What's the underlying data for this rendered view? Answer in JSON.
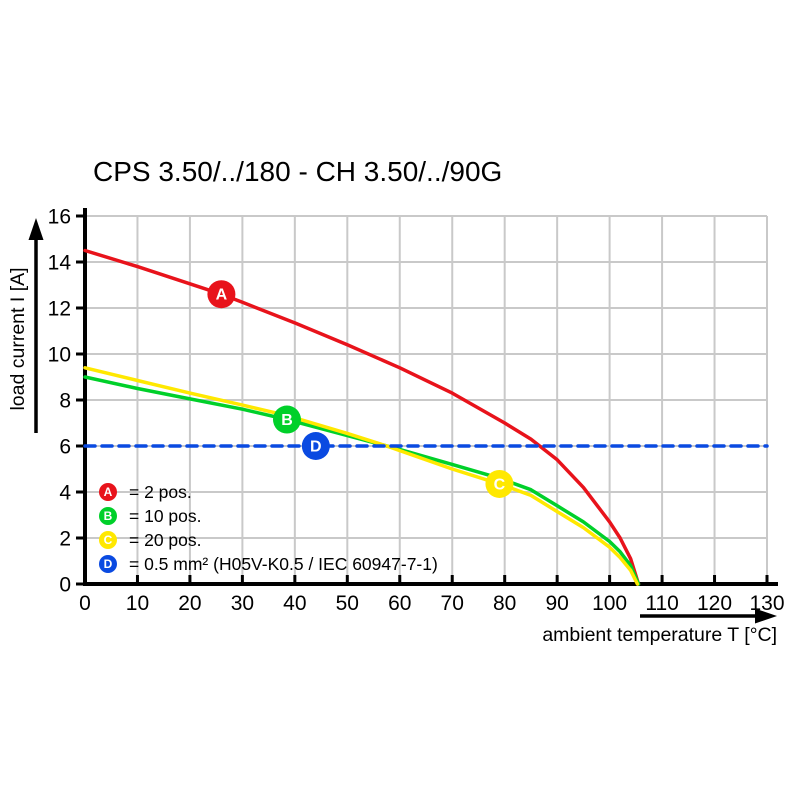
{
  "title": "CPS 3.50/../180 - CH 3.50/../90G",
  "colors": {
    "red": "#e8131b",
    "green": "#00d02a",
    "yellow": "#ffe800",
    "blue": "#0a4ae1",
    "grid": "#c9c9c9",
    "axis": "#000000",
    "marker_letter": "#ffffff"
  },
  "legend": {
    "items": [
      {
        "letter": "A",
        "color": "#e8131b",
        "text": "= 2 pos."
      },
      {
        "letter": "B",
        "color": "#00d02a",
        "text": "= 10 pos."
      },
      {
        "letter": "C",
        "color": "#ffe800",
        "text": "= 20 pos."
      },
      {
        "letter": "D",
        "color": "#0a4ae1",
        "text": "= 0.5 mm² (H05V-K0.5 / IEC 60947-7-1)"
      }
    ]
  },
  "chart_data": {
    "type": "line",
    "title": "CPS 3.50/../180 - CH 3.50/../90G",
    "xlabel": "ambient temperature T [°C]",
    "ylabel": "load current I [A]",
    "xlim": [
      0,
      130
    ],
    "ylim": [
      0,
      16
    ],
    "xticks": [
      0,
      10,
      20,
      30,
      40,
      50,
      60,
      70,
      80,
      90,
      100,
      110,
      120,
      130
    ],
    "yticks": [
      0,
      2,
      4,
      6,
      8,
      10,
      12,
      14,
      16
    ],
    "grid": true,
    "legend_position": "inside-lower-left",
    "series": [
      {
        "name": "A",
        "label": "2 pos.",
        "color": "#e8131b",
        "style": "solid",
        "points": [
          [
            0,
            14.5
          ],
          [
            10,
            13.8
          ],
          [
            20,
            13.05
          ],
          [
            26,
            12.6
          ],
          [
            30,
            12.25
          ],
          [
            40,
            11.35
          ],
          [
            50,
            10.4
          ],
          [
            60,
            9.4
          ],
          [
            70,
            8.3
          ],
          [
            80,
            7.0
          ],
          [
            85,
            6.3
          ],
          [
            90,
            5.4
          ],
          [
            95,
            4.2
          ],
          [
            98,
            3.3
          ],
          [
            100,
            2.7
          ],
          [
            102,
            2.0
          ],
          [
            104,
            1.1
          ],
          [
            105.5,
            0
          ]
        ]
      },
      {
        "name": "B",
        "label": "10 pos.",
        "color": "#00d02a",
        "style": "solid",
        "points": [
          [
            0,
            9.0
          ],
          [
            10,
            8.5
          ],
          [
            20,
            8.05
          ],
          [
            30,
            7.6
          ],
          [
            38.5,
            7.15
          ],
          [
            50,
            6.45
          ],
          [
            57.5,
            6.0
          ],
          [
            60,
            5.85
          ],
          [
            70,
            5.2
          ],
          [
            79,
            4.6
          ],
          [
            85,
            4.1
          ],
          [
            90,
            3.4
          ],
          [
            95,
            2.7
          ],
          [
            100,
            1.85
          ],
          [
            102,
            1.4
          ],
          [
            104,
            0.8
          ],
          [
            105.5,
            0
          ]
        ]
      },
      {
        "name": "C",
        "label": "20 pos.",
        "color": "#ffe800",
        "style": "solid",
        "points": [
          [
            0,
            9.4
          ],
          [
            10,
            8.85
          ],
          [
            20,
            8.3
          ],
          [
            30,
            7.78
          ],
          [
            38.5,
            7.32
          ],
          [
            50,
            6.55
          ],
          [
            57.5,
            6.0
          ],
          [
            60,
            5.8
          ],
          [
            70,
            5.0
          ],
          [
            79,
            4.35
          ],
          [
            85,
            3.85
          ],
          [
            90,
            3.15
          ],
          [
            95,
            2.45
          ],
          [
            100,
            1.6
          ],
          [
            102,
            1.15
          ],
          [
            104,
            0.6
          ],
          [
            105.3,
            0
          ]
        ]
      },
      {
        "name": "D",
        "label": "0.5 mm² (H05V-K0.5 / IEC 60947-7-1)",
        "color": "#0a4ae1",
        "style": "dashed",
        "points": [
          [
            0,
            6
          ],
          [
            130,
            6
          ]
        ]
      }
    ],
    "markers": [
      {
        "series": "A",
        "letter": "A",
        "x": 26,
        "y": 12.6
      },
      {
        "series": "B",
        "letter": "B",
        "x": 38.5,
        "y": 7.15
      },
      {
        "series": "C",
        "letter": "C",
        "x": 79,
        "y": 4.35
      },
      {
        "series": "D",
        "letter": "D",
        "x": 44,
        "y": 6.0
      }
    ]
  }
}
